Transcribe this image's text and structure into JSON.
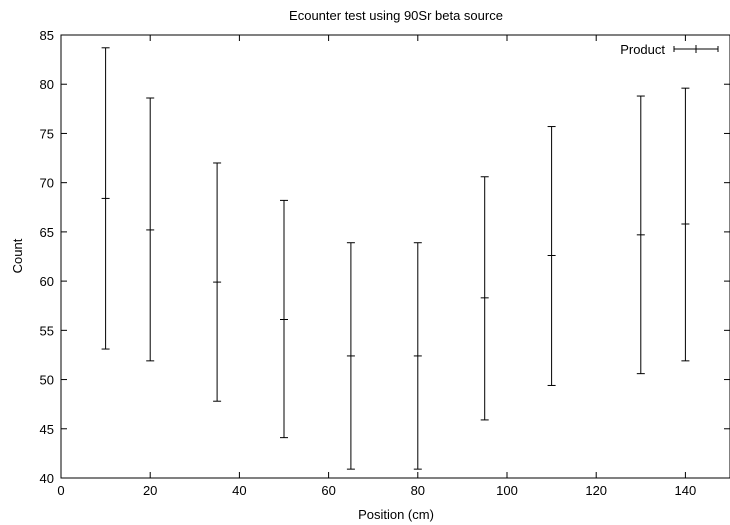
{
  "chart_data": {
    "type": "scatter",
    "title": "Ecounter test using 90Sr beta source",
    "xlabel": "Position (cm)",
    "ylabel": "Count",
    "xlim": [
      0,
      150
    ],
    "ylim": [
      40,
      85
    ],
    "xticks": [
      0,
      20,
      40,
      60,
      80,
      100,
      120,
      140
    ],
    "yticks": [
      40,
      45,
      50,
      55,
      60,
      65,
      70,
      75,
      80,
      85
    ],
    "grid": false,
    "legend_position": "top-right",
    "series": [
      {
        "name": "Product",
        "style": "errorbars",
        "points": [
          {
            "x": 10,
            "y": 68.4,
            "ylow": 53.1,
            "yhigh": 83.7
          },
          {
            "x": 20,
            "y": 65.2,
            "ylow": 51.9,
            "yhigh": 78.6
          },
          {
            "x": 35,
            "y": 59.9,
            "ylow": 47.8,
            "yhigh": 72.0
          },
          {
            "x": 50,
            "y": 56.1,
            "ylow": 44.1,
            "yhigh": 68.2
          },
          {
            "x": 65,
            "y": 52.4,
            "ylow": 40.9,
            "yhigh": 63.9
          },
          {
            "x": 80,
            "y": 52.4,
            "ylow": 40.9,
            "yhigh": 63.9
          },
          {
            "x": 95,
            "y": 58.3,
            "ylow": 45.9,
            "yhigh": 70.6
          },
          {
            "x": 110,
            "y": 62.6,
            "ylow": 49.4,
            "yhigh": 75.7
          },
          {
            "x": 130,
            "y": 64.7,
            "ylow": 50.6,
            "yhigh": 78.8
          },
          {
            "x": 140,
            "y": 65.8,
            "ylow": 51.9,
            "yhigh": 79.6
          }
        ]
      }
    ]
  }
}
